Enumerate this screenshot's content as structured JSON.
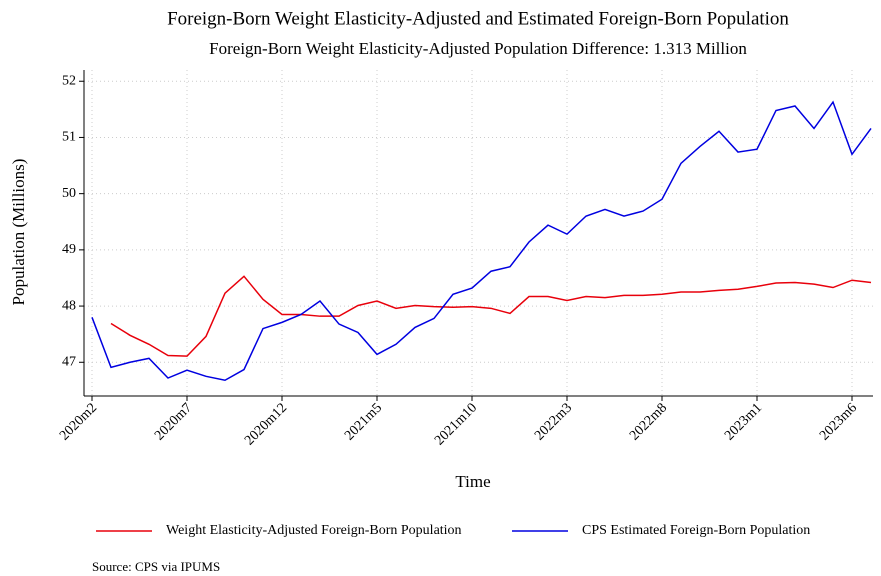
{
  "chart_data": {
    "type": "line",
    "title": "Foreign-Born Weight Elasticity-Adjusted and Estimated Foreign-Born Population",
    "subtitle": "Foreign-Born Weight Elasticity-Adjusted Population Difference: 1.313 Million",
    "x_label": "Time",
    "y_label": "Population (Millions)",
    "source": "Source: CPS via IPUMS",
    "categories": [
      "2020m2",
      null,
      null,
      null,
      null,
      "2020m7",
      null,
      null,
      null,
      null,
      "2020m12",
      null,
      null,
      null,
      null,
      "2021m5",
      null,
      null,
      null,
      null,
      "2021m10",
      null,
      null,
      null,
      null,
      "2022m3",
      null,
      null,
      null,
      null,
      "2022m8",
      null,
      null,
      null,
      null,
      "2023m1",
      null,
      null,
      null,
      null,
      "2023m6",
      null
    ],
    "series": [
      {
        "name": "Weight Elasticity-Adjusted Foreign-Born Population",
        "color": "#e8000b",
        "values": [
          null,
          47.69,
          47.48,
          47.32,
          47.12,
          47.11,
          47.46,
          48.23,
          48.53,
          48.12,
          47.85,
          47.85,
          47.82,
          47.82,
          48.01,
          48.09,
          47.96,
          48.01,
          47.99,
          47.98,
          47.99,
          47.96,
          47.87,
          48.17,
          48.17,
          48.1,
          48.17,
          48.15,
          48.19,
          48.19,
          48.21,
          48.25,
          48.25,
          48.28,
          48.3,
          48.35,
          48.41,
          48.42,
          48.39,
          48.33,
          48.46,
          48.42
        ]
      },
      {
        "name": "CPS Estimated Foreign-Born Population",
        "color": "#0000e0",
        "values": [
          47.8,
          46.91,
          47.0,
          47.07,
          46.72,
          46.86,
          46.75,
          46.68,
          46.87,
          47.6,
          47.71,
          47.85,
          48.09,
          47.68,
          47.53,
          47.14,
          47.32,
          47.62,
          47.78,
          48.21,
          48.32,
          48.62,
          48.7,
          49.14,
          49.44,
          49.28,
          49.6,
          49.72,
          49.6,
          49.69,
          49.9,
          50.54,
          50.84,
          51.11,
          50.74,
          50.79,
          51.48,
          51.56,
          51.16,
          51.63,
          50.7,
          51.16
        ]
      }
    ],
    "ylim": [
      46.4,
      52.2
    ],
    "yticks": [
      47,
      48,
      49,
      50,
      51,
      52
    ],
    "grid": true,
    "legend": "bottom"
  }
}
